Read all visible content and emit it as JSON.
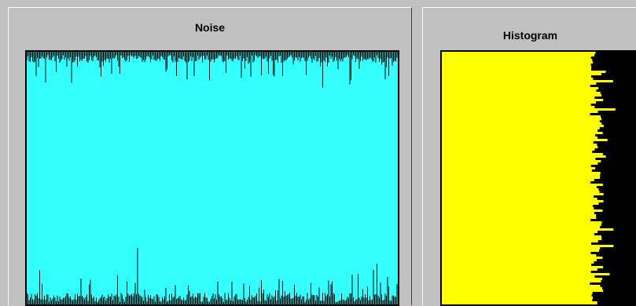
{
  "noise_panel": {
    "title": "Noise",
    "fill_color": "#33ffff",
    "spike_color": "#000000"
  },
  "histogram_panel": {
    "title": "Histogram",
    "fill_color": "#ffff00",
    "background_color": "#000000"
  }
}
